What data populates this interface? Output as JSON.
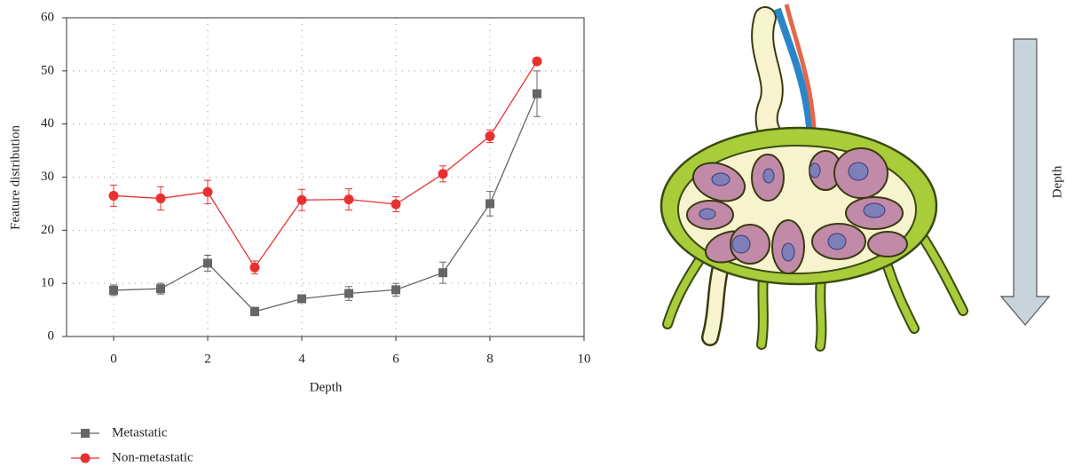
{
  "chart_data": {
    "type": "line",
    "x_label": "Depth",
    "y_label": "Feature distribution",
    "x": [
      0,
      1,
      2,
      3,
      4,
      5,
      6,
      7,
      8,
      9
    ],
    "series": [
      {
        "name": "Metastatic",
        "color": "#666666",
        "marker": "square",
        "values": [
          8.7,
          9,
          13.8,
          4.7,
          7.1,
          8.1,
          8.8,
          12,
          25,
          45.7
        ],
        "errors": [
          1,
          1,
          1.5,
          0.8,
          0.5,
          1.3,
          1.2,
          2,
          2.3,
          4.3
        ]
      },
      {
        "name": "Non-metastatic",
        "color": "#e8312f",
        "marker": "circle",
        "values": [
          26.5,
          26,
          27.2,
          13,
          25.7,
          25.8,
          24.9,
          30.6,
          37.7,
          51.8
        ],
        "errors": [
          2,
          2.2,
          2.2,
          1.2,
          2,
          2,
          1.4,
          1.5,
          1.2,
          0.5
        ]
      }
    ],
    "xlim": [
      -1,
      10
    ],
    "xticks": [
      0,
      2,
      4,
      6,
      8,
      10
    ],
    "ylim": [
      0,
      60
    ],
    "yticks": [
      0,
      10,
      20,
      30,
      40,
      50,
      60
    ],
    "grid": true,
    "legend": "bottom-left"
  },
  "illustration": {
    "arrow_label": "Depth"
  }
}
